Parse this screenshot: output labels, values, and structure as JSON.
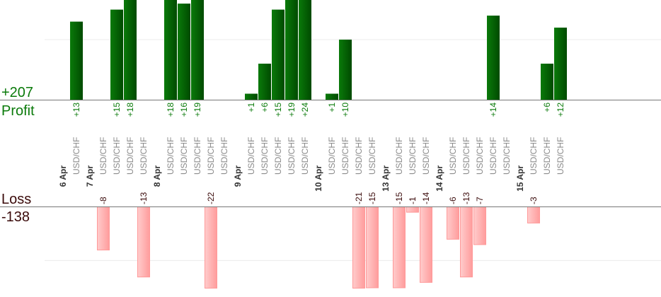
{
  "chart_data": {
    "type": "bar",
    "title": "",
    "profit_label": "Profit",
    "profit_total": "+207",
    "loss_label": "Loss",
    "loss_total": "-138",
    "colors": {
      "profit": "#006400",
      "loss": "#ffaaaa",
      "profit_text": "#0a7a0a",
      "loss_text": "#3a0a0a"
    },
    "profit_gridline": 10,
    "loss_gridline": -10,
    "profit_ylim": [
      0,
      16.6
    ],
    "loss_ylim": [
      -15.2,
      0
    ],
    "groups": [
      {
        "date": "6 Apr",
        "trades": [
          {
            "symbol": "USD/CHF",
            "value": 13
          }
        ]
      },
      {
        "date": "7 Apr",
        "trades": [
          {
            "symbol": "USD/CHF",
            "value": -8
          },
          {
            "symbol": "USD/CHF",
            "value": 15
          },
          {
            "symbol": "USD/CHF",
            "value": 18
          },
          {
            "symbol": "USD/CHF",
            "value": -13
          }
        ]
      },
      {
        "date": "8 Apr",
        "trades": [
          {
            "symbol": "USD/CHF",
            "value": 18
          },
          {
            "symbol": "USD/CHF",
            "value": 16
          },
          {
            "symbol": "USD/CHF",
            "value": 19
          },
          {
            "symbol": "USD/CHF",
            "value": -22
          },
          {
            "symbol": "USD/CHF",
            "value": null
          }
        ]
      },
      {
        "date": "9 Apr",
        "trades": [
          {
            "symbol": "USD/CHF",
            "value": 1
          },
          {
            "symbol": "USD/CHF",
            "value": 6
          },
          {
            "symbol": "USD/CHF",
            "value": 15
          },
          {
            "symbol": "USD/CHF",
            "value": 19
          },
          {
            "symbol": "USD/CHF",
            "value": 24
          }
        ]
      },
      {
        "date": "10 Apr",
        "trades": [
          {
            "symbol": "USD/CHF",
            "value": 1
          },
          {
            "symbol": "USD/CHF",
            "value": 10
          },
          {
            "symbol": "USD/CHF",
            "value": -21
          },
          {
            "symbol": "USD/CHF",
            "value": -15
          }
        ]
      },
      {
        "date": "13 Apr",
        "trades": [
          {
            "symbol": "USD/CHF",
            "value": -15
          },
          {
            "symbol": "USD/CHF",
            "value": -1
          },
          {
            "symbol": "USD/CHF",
            "value": -14
          }
        ]
      },
      {
        "date": "14 Apr",
        "trades": [
          {
            "symbol": "USD/CHF",
            "value": -6
          },
          {
            "symbol": "USD/CHF",
            "value": -13
          },
          {
            "symbol": "USD/CHF",
            "value": -7
          },
          {
            "symbol": "USD/CHF",
            "value": 14
          },
          {
            "symbol": "USD/CHF",
            "value": null
          }
        ]
      },
      {
        "date": "15 Apr",
        "trades": [
          {
            "symbol": "USD/CHF",
            "value": -3
          },
          {
            "symbol": "USD/CHF",
            "value": 6
          },
          {
            "symbol": "USD/CHF",
            "value": 12
          }
        ]
      }
    ]
  }
}
